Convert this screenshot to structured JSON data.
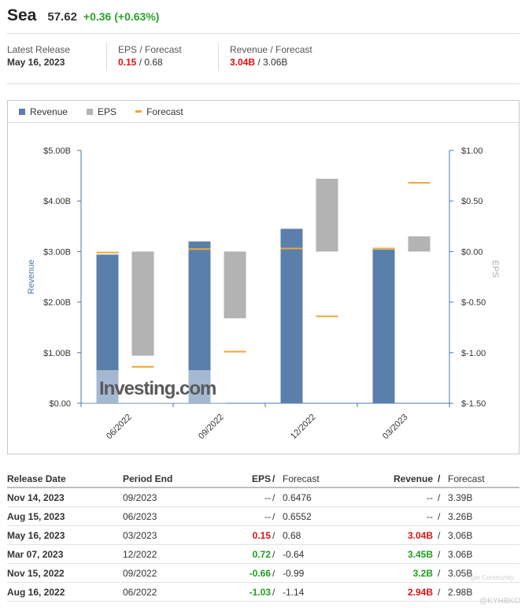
{
  "header": {
    "ticker": "Sea",
    "price": "57.62",
    "change": "+0.36 (+0.63%)"
  },
  "latest": {
    "release_label": "Latest Release",
    "release_date": "May 16, 2023",
    "eps_label": "EPS / Forecast",
    "eps_actual": "0.15",
    "eps_forecast": " / 0.68",
    "rev_label": "Revenue / Forecast",
    "rev_actual": "3.04B",
    "rev_forecast": " / 3.06B"
  },
  "legend": {
    "revenue": "Revenue",
    "eps": "EPS",
    "forecast": "Forecast"
  },
  "colors": {
    "revenue": "#5b7fab",
    "eps": "#b3b3b3",
    "forecast": "#f0a635",
    "positive": "#1f9e1f",
    "negative": "#dd1111"
  },
  "chart_data": {
    "type": "bar",
    "categories": [
      "06/2022",
      "09/2022",
      "12/2022",
      "03/2023"
    ],
    "series": [
      {
        "name": "Revenue",
        "axis": "left",
        "values": [
          2.94,
          3.2,
          3.45,
          3.04
        ]
      },
      {
        "name": "EPS",
        "axis": "right",
        "values": [
          -1.03,
          -0.66,
          0.72,
          0.15
        ]
      },
      {
        "name": "Forecast",
        "axis": "right",
        "values": [
          -1.14,
          -0.99,
          -0.64,
          0.68
        ]
      }
    ],
    "revenue_forecast": [
      2.98,
      3.05,
      3.06,
      3.06
    ],
    "ylabel": "Revenue",
    "y2label": "EPS",
    "ylim": [
      0,
      5
    ],
    "y2lim": [
      -1.5,
      1
    ],
    "y_ticks": [
      "$0.00",
      "$1.00B",
      "$2.00B",
      "$3.00B",
      "$4.00B",
      "$5.00B"
    ],
    "y2_ticks": [
      "$-1.50",
      "$-1.00",
      "$-0.50",
      "$0.00",
      "$0.50",
      "$1.00"
    ],
    "legend": "top-left",
    "watermark": "Investing.com"
  },
  "table": {
    "headers": {
      "date": "Release Date",
      "period": "Period End",
      "eps": "EPS",
      "slash": "/",
      "eps_fc": "Forecast",
      "rev": "Revenue",
      "rev_fc": "Forecast"
    },
    "rows": [
      {
        "date": "Nov 14, 2023",
        "period": "09/2023",
        "eps": "--",
        "eps_fc": "0.6476",
        "rev": "--",
        "rev_fc": "3.39B",
        "eps_cls": "",
        "rev_cls": ""
      },
      {
        "date": "Aug 15, 2023",
        "period": "06/2023",
        "eps": "--",
        "eps_fc": "0.6552",
        "rev": "--",
        "rev_fc": "3.26B",
        "eps_cls": "",
        "rev_cls": ""
      },
      {
        "date": "May 16, 2023",
        "period": "03/2023",
        "eps": "0.15",
        "eps_fc": "0.68",
        "rev": "3.04B",
        "rev_fc": "3.06B",
        "eps_cls": "neg",
        "rev_cls": "neg"
      },
      {
        "date": "Mar 07, 2023",
        "period": "12/2022",
        "eps": "0.72",
        "eps_fc": "-0.64",
        "rev": "3.45B",
        "rev_fc": "3.06B",
        "eps_cls": "pos",
        "rev_cls": "pos"
      },
      {
        "date": "Nov 15, 2022",
        "period": "09/2022",
        "eps": "-0.66",
        "eps_fc": "-0.99",
        "rev": "3.2B",
        "rev_fc": "3.05B",
        "eps_cls": "pos",
        "rev_cls": "pos"
      },
      {
        "date": "Aug 16, 2022",
        "period": "06/2022",
        "eps": "-1.03",
        "eps_fc": "-1.14",
        "rev": "2.94B",
        "rev_fc": "2.98B",
        "eps_cls": "pos",
        "rev_cls": "neg"
      }
    ]
  },
  "watermark": {
    "community": "Tiger Community",
    "handle": "@KYHBKO"
  }
}
